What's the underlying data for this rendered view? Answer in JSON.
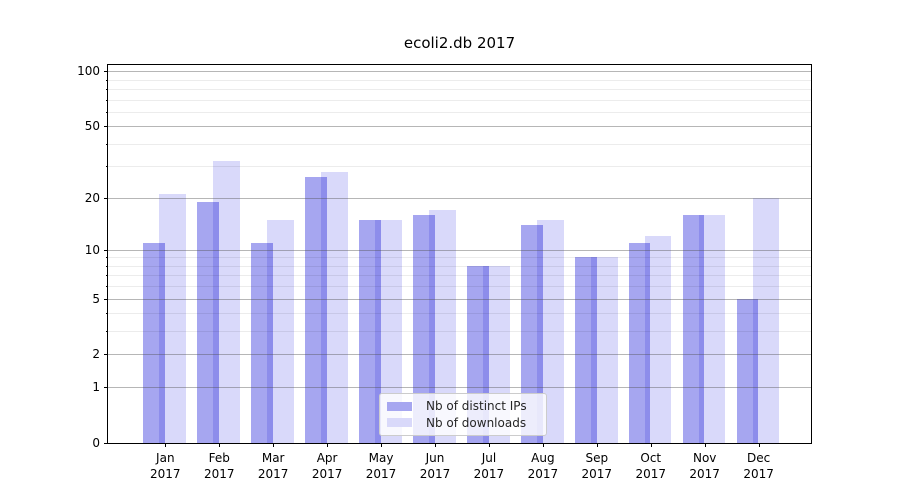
{
  "chart_data": {
    "type": "bar",
    "title": "ecoli2.db 2017",
    "categories": [
      "Jan",
      "Feb",
      "Mar",
      "Apr",
      "May",
      "Jun",
      "Jul",
      "Aug",
      "Sep",
      "Oct",
      "Nov",
      "Dec"
    ],
    "year_label": "2017",
    "series": [
      {
        "name": "Nb of distinct IPs",
        "color": "#a6a6f0",
        "values": [
          11,
          19,
          11,
          26,
          15,
          16,
          8,
          14,
          9,
          11,
          16,
          5
        ]
      },
      {
        "name": "Nb of downloads",
        "color": "#d9d9fa",
        "values": [
          21,
          32,
          15,
          28,
          15,
          17,
          8,
          15,
          9,
          12,
          16,
          20
        ]
      }
    ],
    "yscale": "log1p",
    "ylim": [
      0,
      108
    ],
    "ytick_values": [
      100,
      50,
      20,
      10,
      5,
      2,
      1,
      0
    ],
    "ytick_labels": [
      "100",
      "50",
      "20",
      "10",
      "5",
      "2",
      "1",
      "0"
    ],
    "yminor_tick_values": [
      3,
      4,
      6,
      7,
      8,
      9,
      30,
      40,
      60,
      70,
      80,
      90
    ],
    "grid": true,
    "legend_position": "lower center"
  }
}
